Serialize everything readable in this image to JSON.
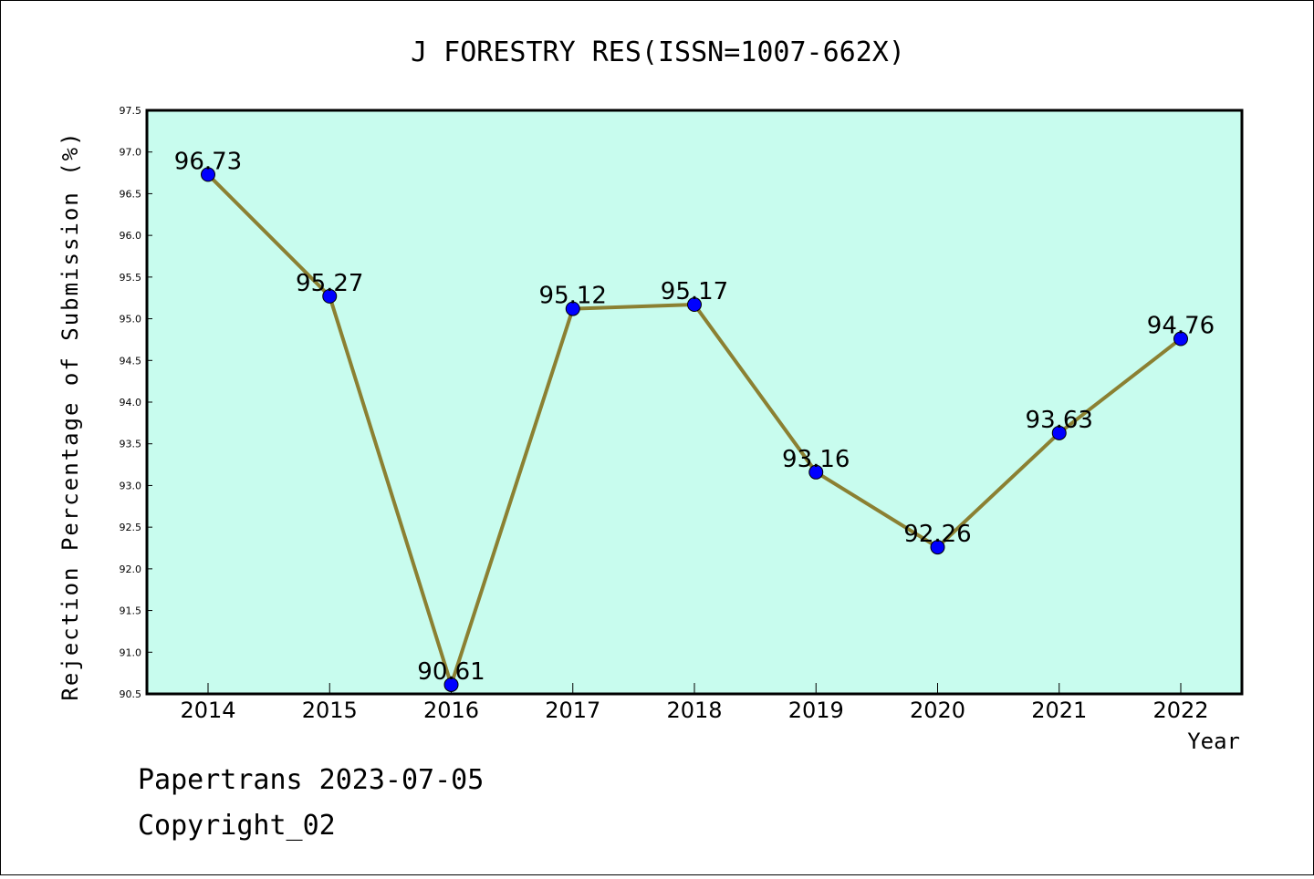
{
  "chart_data": {
    "type": "line",
    "title": "J FORESTRY RES(ISSN=1007-662X)",
    "xlabel": "Year",
    "ylabel": "Rejection Percentage of Submission (%)",
    "categories": [
      "2014",
      "2015",
      "2016",
      "2017",
      "2018",
      "2019",
      "2020",
      "2021",
      "2022"
    ],
    "series": [
      {
        "values": [
          96.73,
          95.27,
          90.61,
          95.12,
          95.17,
          93.16,
          92.26,
          93.63,
          94.76
        ],
        "data_labels": [
          "96.73",
          "95.27",
          "90.61",
          "95.12",
          "95.17",
          "93.16",
          "92.26",
          "93.63",
          "94.76"
        ]
      }
    ],
    "ylim": [
      90.5,
      97.5
    ],
    "yticks": [
      "90.5",
      "91.0",
      "91.5",
      "92.0",
      "92.5",
      "93.0",
      "93.5",
      "94.0",
      "94.5",
      "95.0",
      "95.5",
      "96.0",
      "96.5",
      "97.0",
      "97.5"
    ],
    "grid": false,
    "colors": {
      "plot_background": "#c8fcee",
      "line": "#8b8032",
      "marker": "#0000ff"
    }
  },
  "footer": {
    "line1": "Papertrans 2023-07-05",
    "line2": "Copyright_02"
  }
}
